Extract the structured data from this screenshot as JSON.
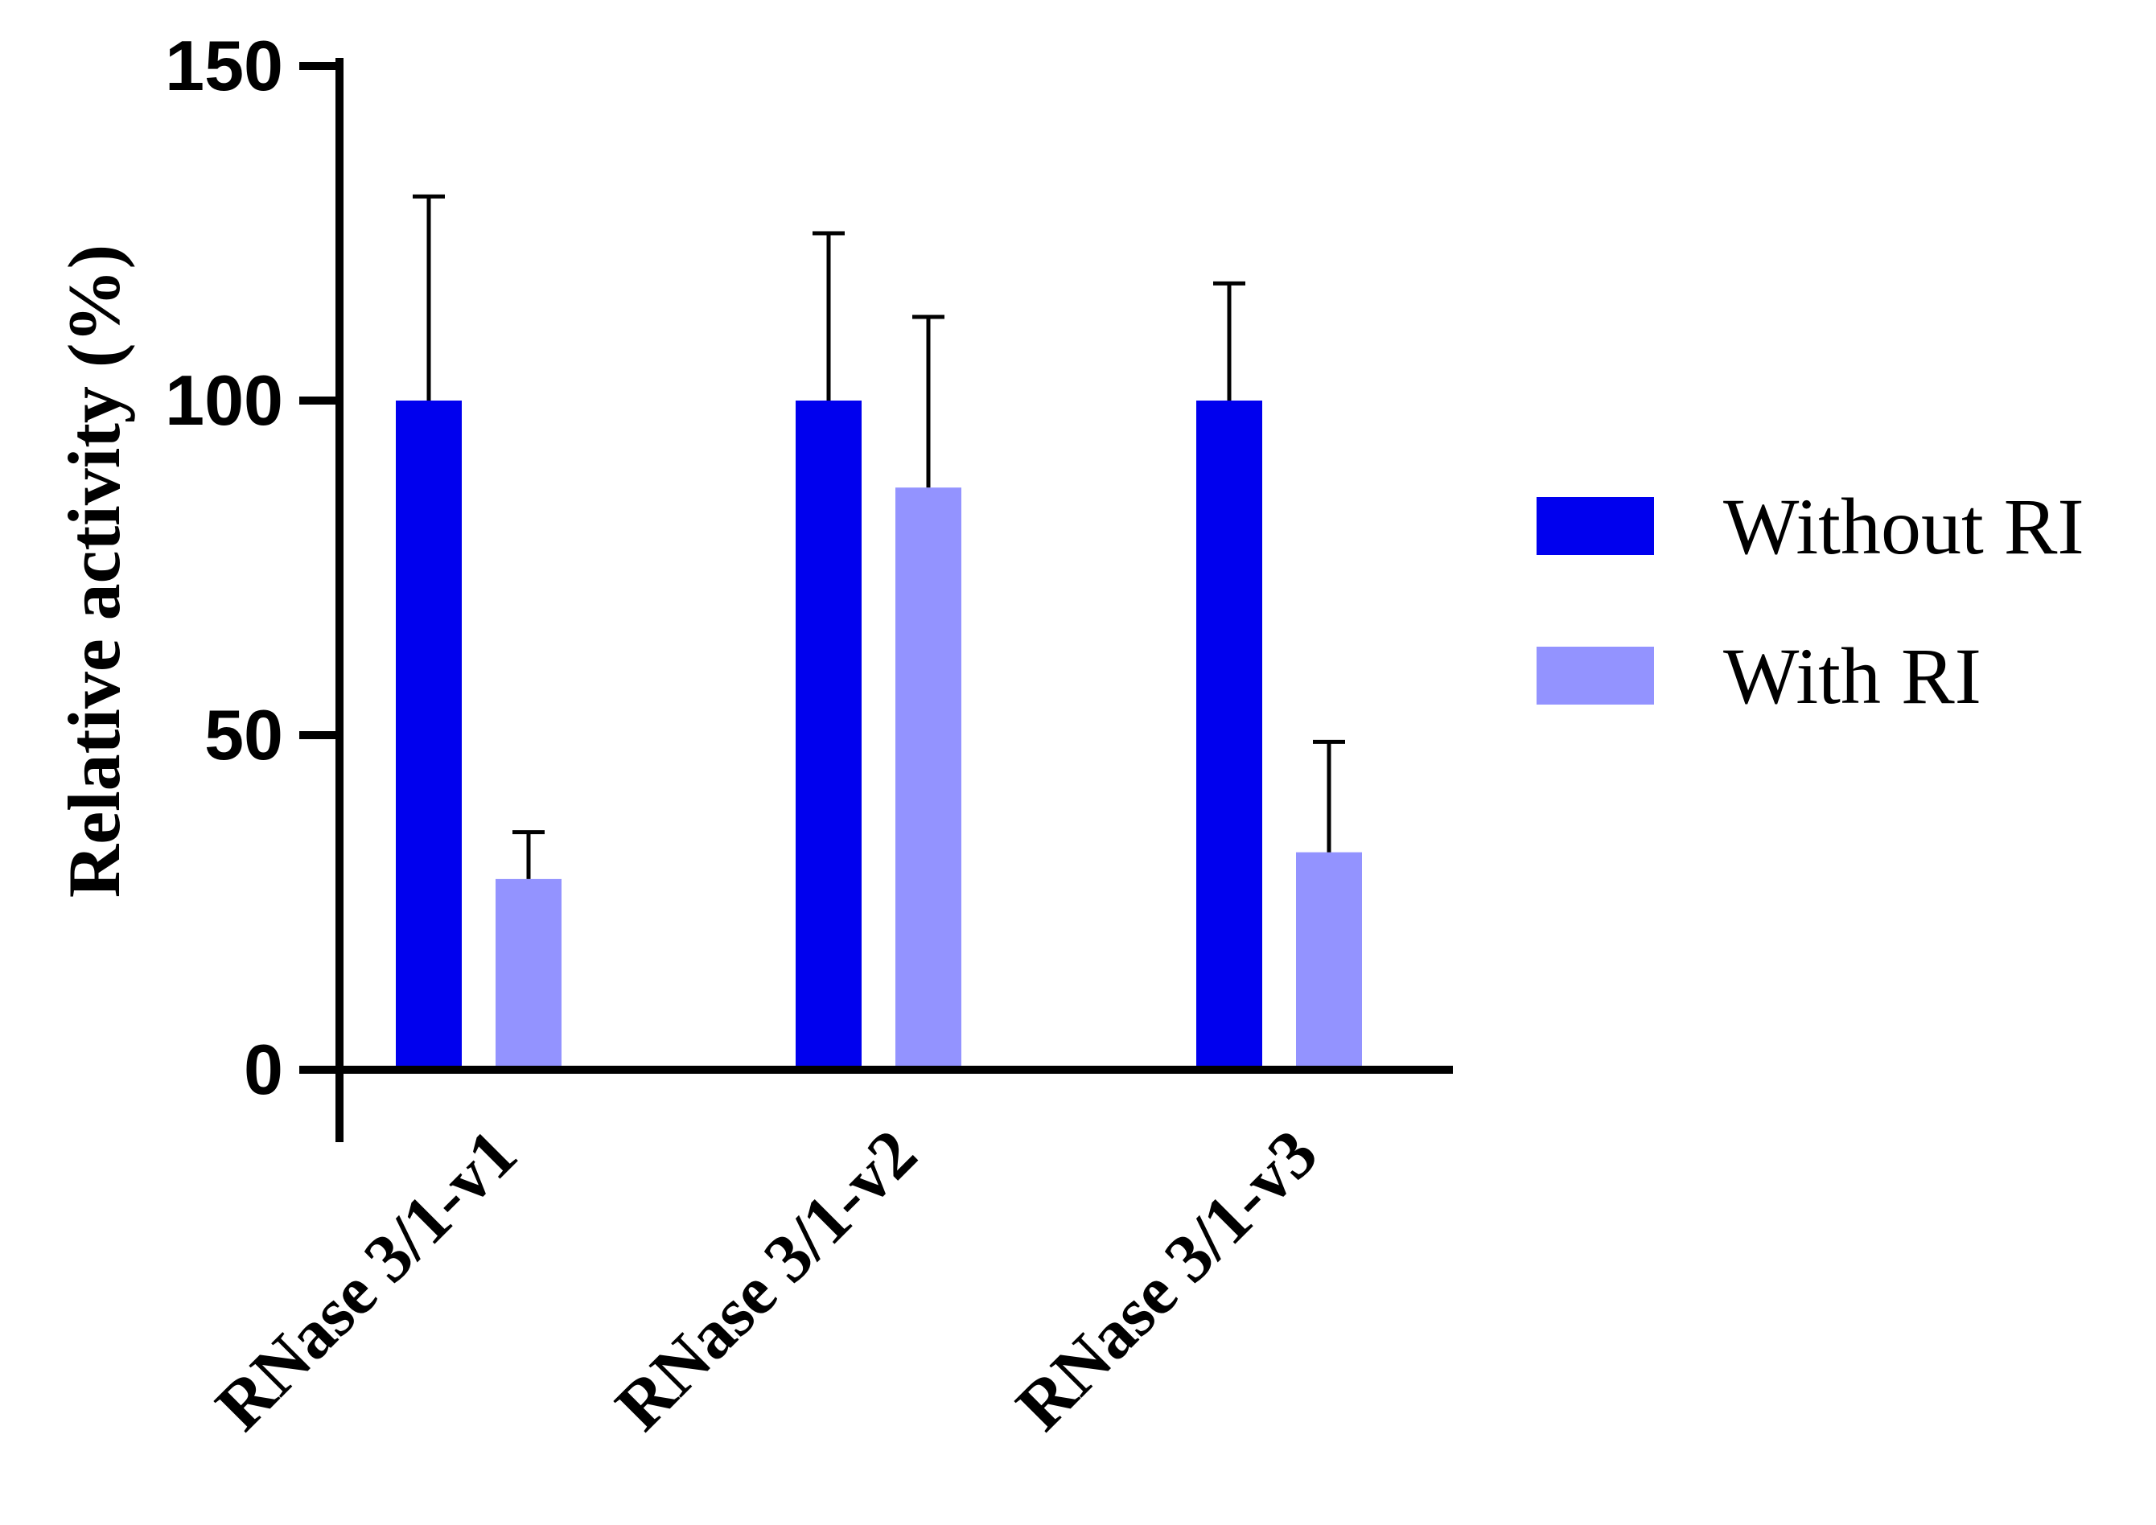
{
  "chart_data": {
    "type": "bar",
    "categories": [
      "RNase 3/1-v1",
      "RNase 3/1-v2",
      "RNase 3/1-v3"
    ],
    "series": [
      {
        "name": "Without RI",
        "values": [
          100,
          100,
          100
        ],
        "error": [
          30.5,
          25,
          17.5
        ],
        "color": "#0000ee"
      },
      {
        "name": "With RI",
        "values": [
          28.5,
          87,
          32.5
        ],
        "error": [
          7,
          25.5,
          16.5
        ],
        "color": "#9393ff"
      }
    ],
    "xlabel": "",
    "ylabel": "Relative activity (%)",
    "ylim": [
      0,
      150
    ],
    "yticks": [
      0,
      50,
      100,
      150
    ],
    "grid": false,
    "legend_position": "right"
  }
}
